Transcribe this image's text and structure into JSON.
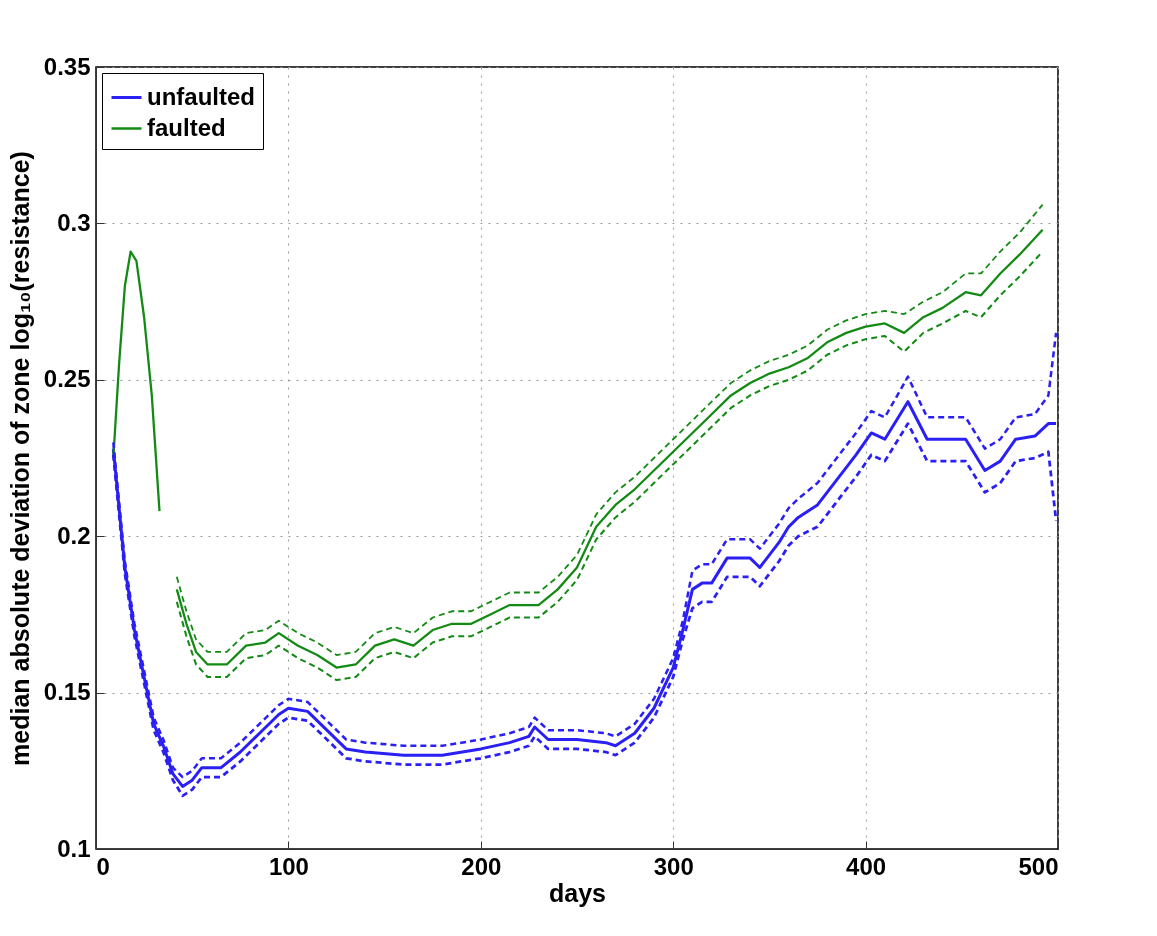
{
  "chart_data": {
    "type": "line",
    "xlabel": "days",
    "ylabel": "median absolute deviation of zone log₁₀(resistance)",
    "xlim": [
      0,
      500
    ],
    "xticks": [
      0,
      100,
      200,
      300,
      400,
      500
    ],
    "ylim": [
      0.1,
      0.35
    ],
    "yticks": [
      {
        "value": 0.1,
        "label": "0.1"
      },
      0.15,
      {
        "value": 0.2,
        "label": "0.2"
      },
      0.25,
      {
        "value": 0.3,
        "label": "0.3"
      },
      0.35
    ],
    "grid": true,
    "legend": "top left",
    "series": [
      {
        "name": "unfaulted",
        "color": "#2a1ff5",
        "line_style": "solid",
        "x": [
          9,
          15,
          20,
          25,
          30,
          35,
          40,
          45,
          50,
          55,
          65,
          75,
          85,
          95,
          100,
          110,
          120,
          130,
          140,
          160,
          180,
          200,
          215,
          225,
          228,
          235,
          250,
          265,
          270,
          280,
          290,
          300,
          305,
          310,
          315,
          320,
          328,
          340,
          345,
          355,
          360,
          365,
          375,
          385,
          395,
          403,
          410,
          422,
          432,
          452,
          462,
          470,
          478,
          488,
          495,
          499
        ],
        "values": [
          0.228,
          0.19,
          0.17,
          0.155,
          0.14,
          0.133,
          0.124,
          0.12,
          0.122,
          0.126,
          0.126,
          0.131,
          0.137,
          0.143,
          0.145,
          0.144,
          0.138,
          0.132,
          0.131,
          0.13,
          0.13,
          0.132,
          0.134,
          0.136,
          0.139,
          0.135,
          0.135,
          0.134,
          0.133,
          0.137,
          0.145,
          0.158,
          0.17,
          0.183,
          0.185,
          0.185,
          0.193,
          0.193,
          0.19,
          0.198,
          0.203,
          0.206,
          0.21,
          0.218,
          0.226,
          0.233,
          0.231,
          0.243,
          0.231,
          0.231,
          0.221,
          0.224,
          0.231,
          0.232,
          0.236,
          0.236
        ]
      },
      {
        "color": "#2a1ff5",
        "line_style": "dashed",
        "x": [
          9,
          15,
          20,
          25,
          30,
          35,
          40,
          45,
          50,
          55,
          65,
          75,
          85,
          95,
          100,
          110,
          120,
          130,
          140,
          160,
          180,
          200,
          215,
          225,
          228,
          235,
          250,
          265,
          270,
          280,
          290,
          300,
          305,
          310,
          315,
          320,
          328,
          340,
          345,
          355,
          360,
          365,
          375,
          385,
          395,
          403,
          410,
          422,
          432,
          452,
          462,
          470,
          478,
          488,
          495,
          499
        ],
        "values": [
          0.226,
          0.188,
          0.168,
          0.153,
          0.138,
          0.131,
          0.122,
          0.117,
          0.119,
          0.123,
          0.123,
          0.128,
          0.134,
          0.14,
          0.142,
          0.141,
          0.135,
          0.129,
          0.128,
          0.127,
          0.127,
          0.129,
          0.131,
          0.133,
          0.136,
          0.132,
          0.132,
          0.131,
          0.13,
          0.134,
          0.142,
          0.155,
          0.167,
          0.177,
          0.179,
          0.179,
          0.187,
          0.187,
          0.184,
          0.192,
          0.197,
          0.2,
          0.203,
          0.211,
          0.219,
          0.226,
          0.224,
          0.236,
          0.224,
          0.224,
          0.214,
          0.217,
          0.224,
          0.225,
          0.227,
          0.205
        ]
      },
      {
        "color": "#2a1ff5",
        "line_style": "dashed",
        "x": [
          9,
          15,
          20,
          25,
          30,
          35,
          40,
          45,
          50,
          55,
          65,
          75,
          85,
          95,
          100,
          110,
          120,
          130,
          140,
          160,
          180,
          200,
          215,
          225,
          228,
          235,
          250,
          265,
          270,
          280,
          290,
          300,
          305,
          310,
          315,
          320,
          328,
          340,
          345,
          355,
          360,
          365,
          375,
          385,
          395,
          403,
          410,
          422,
          432,
          452,
          462,
          470,
          478,
          488,
          495,
          499
        ],
        "values": [
          0.23,
          0.192,
          0.172,
          0.157,
          0.142,
          0.135,
          0.126,
          0.123,
          0.125,
          0.129,
          0.129,
          0.134,
          0.14,
          0.146,
          0.148,
          0.147,
          0.141,
          0.135,
          0.134,
          0.133,
          0.133,
          0.135,
          0.137,
          0.139,
          0.142,
          0.138,
          0.138,
          0.137,
          0.136,
          0.14,
          0.148,
          0.161,
          0.173,
          0.189,
          0.191,
          0.191,
          0.199,
          0.199,
          0.196,
          0.204,
          0.209,
          0.212,
          0.217,
          0.225,
          0.233,
          0.24,
          0.238,
          0.251,
          0.238,
          0.238,
          0.228,
          0.231,
          0.238,
          0.239,
          0.245,
          0.265
        ]
      },
      {
        "name": "faulted",
        "color": "#138a13",
        "line_style": "solid",
        "x": [
          9,
          12,
          15,
          18,
          21,
          25,
          29,
          33,
          37,
          42,
          47,
          52,
          58,
          68,
          78,
          88,
          95,
          105,
          115,
          125,
          135,
          145,
          155,
          165,
          175,
          185,
          195,
          205,
          215,
          230,
          240,
          250,
          260,
          270,
          280,
          290,
          300,
          310,
          320,
          330,
          340,
          350,
          360,
          370,
          380,
          390,
          400,
          410,
          420,
          430,
          440,
          452,
          460,
          470,
          480,
          492
        ],
        "values": [
          0.225,
          0.255,
          0.28,
          0.291,
          0.288,
          0.27,
          0.245,
          0.208,
          null,
          0.183,
          0.172,
          0.163,
          0.159,
          0.159,
          0.165,
          0.166,
          0.169,
          0.165,
          0.162,
          0.158,
          0.159,
          0.165,
          0.167,
          0.165,
          0.17,
          0.172,
          0.172,
          0.175,
          0.178,
          0.178,
          0.183,
          0.19,
          0.203,
          0.21,
          0.215,
          0.221,
          0.227,
          0.233,
          0.239,
          0.245,
          0.249,
          0.252,
          0.254,
          0.257,
          0.262,
          0.265,
          0.267,
          0.268,
          0.265,
          0.27,
          0.273,
          0.278,
          0.277,
          0.284,
          0.29,
          0.298
        ]
      },
      {
        "color": "#138a13",
        "line_style": "dashed",
        "x": [
          42,
          47,
          52,
          58,
          68,
          78,
          88,
          95,
          105,
          115,
          125,
          135,
          145,
          155,
          165,
          175,
          185,
          195,
          205,
          215,
          230,
          240,
          250,
          260,
          270,
          280,
          290,
          300,
          310,
          320,
          330,
          340,
          350,
          360,
          370,
          380,
          390,
          400,
          410,
          420,
          430,
          440,
          452,
          460,
          470,
          480,
          492
        ],
        "values": [
          0.179,
          0.168,
          0.159,
          0.155,
          0.155,
          0.161,
          0.162,
          0.165,
          0.161,
          0.158,
          0.154,
          0.155,
          0.161,
          0.163,
          0.161,
          0.166,
          0.168,
          0.168,
          0.171,
          0.174,
          0.174,
          0.179,
          0.186,
          0.199,
          0.206,
          0.211,
          0.217,
          0.223,
          0.229,
          0.235,
          0.241,
          0.245,
          0.248,
          0.25,
          0.253,
          0.258,
          0.261,
          0.263,
          0.264,
          0.259,
          0.265,
          0.268,
          0.272,
          0.27,
          0.277,
          0.283,
          0.291
        ]
      },
      {
        "color": "#138a13",
        "line_style": "dashed",
        "x": [
          42,
          47,
          52,
          58,
          68,
          78,
          88,
          95,
          105,
          115,
          125,
          135,
          145,
          155,
          165,
          175,
          185,
          195,
          205,
          215,
          230,
          240,
          250,
          260,
          270,
          280,
          290,
          300,
          310,
          320,
          330,
          340,
          350,
          360,
          370,
          380,
          390,
          400,
          410,
          420,
          430,
          440,
          452,
          460,
          470,
          480,
          492
        ],
        "values": [
          0.187,
          0.176,
          0.167,
          0.163,
          0.163,
          0.169,
          0.17,
          0.173,
          0.169,
          0.166,
          0.162,
          0.163,
          0.169,
          0.171,
          0.169,
          0.174,
          0.176,
          0.176,
          0.179,
          0.182,
          0.182,
          0.187,
          0.194,
          0.207,
          0.214,
          0.219,
          0.225,
          0.231,
          0.237,
          0.243,
          0.249,
          0.253,
          0.256,
          0.258,
          0.261,
          0.266,
          0.269,
          0.271,
          0.272,
          0.271,
          0.275,
          0.278,
          0.284,
          0.284,
          0.291,
          0.297,
          0.306
        ]
      }
    ]
  }
}
